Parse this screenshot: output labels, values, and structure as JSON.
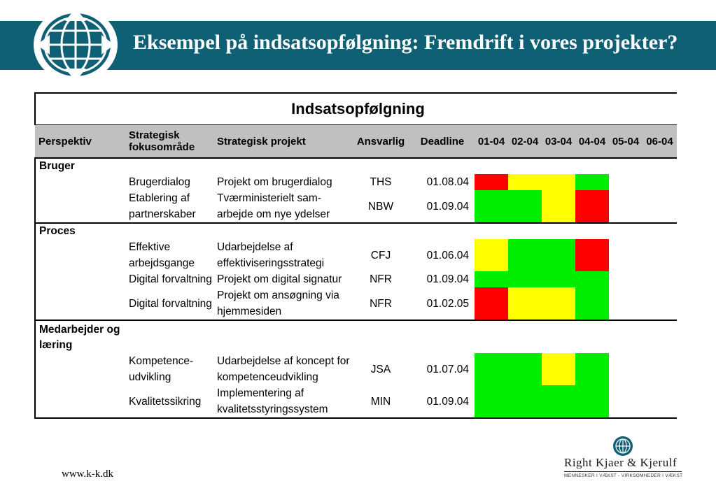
{
  "slide": {
    "title": "Eksempel på indsatsopfølgning: Fremdrift i vores projekter?",
    "url": "www.k-k.dk",
    "brand_name": "Right Kjaer & Kjerulf",
    "brand_sub": "MENNESKER I VÆKST - VIRKSOMHEDER I VÆKST",
    "header_color": "#0f5f75"
  },
  "table": {
    "title": "Indsatsopfølgning",
    "headers": {
      "perspektiv": "Perspektiv",
      "fokus": "Strategisk fokusområde",
      "projekt": "Strategisk projekt",
      "ansvarlig": "Ansvarlig",
      "deadline": "Deadline",
      "months": [
        "01-04",
        "02-04",
        "03-04",
        "04-04",
        "05-04",
        "06-04"
      ]
    },
    "status_colors": {
      "r": "#ff0000",
      "y": "#ffff00",
      "g": "#00ee00"
    },
    "groups": [
      {
        "perspektiv": "Bruger",
        "rows": [
          {
            "fokus": "Brugerdialog",
            "projekt": "Projekt om brugerdialog",
            "ansvarlig": "THS",
            "deadline": "01.08.04",
            "status": [
              "r",
              "y",
              "y",
              "g"
            ]
          },
          {
            "fokus": "Etablering af partnerskaber",
            "projekt": "Tværministerielt sam-arbejde om nye ydelser",
            "ansvarlig": "NBW",
            "deadline": "01.09.04",
            "status": [
              "g",
              "g",
              "y",
              "r"
            ]
          }
        ]
      },
      {
        "perspektiv": "Proces",
        "rows": [
          {
            "fokus": "Effektive arbejdsgange",
            "projekt": "Udarbejdelse af effektiviseringsstrategi",
            "ansvarlig": "CFJ",
            "deadline": "01.06.04",
            "status": [
              "y",
              "g",
              "g",
              "r"
            ]
          },
          {
            "fokus": "Digital forvaltning",
            "projekt": "Projekt om digital signatur",
            "ansvarlig": "NFR",
            "deadline": "01.09.04",
            "status": [
              "g",
              "g",
              "g",
              "g"
            ]
          },
          {
            "fokus": "Digital forvaltning",
            "projekt": "Projekt om ansøgning via hjemmesiden",
            "ansvarlig": "NFR",
            "deadline": "01.02.05",
            "status": [
              "r",
              "y",
              "y",
              "g"
            ]
          }
        ]
      },
      {
        "perspektiv": "Medarbejder og læring",
        "rows": [
          {
            "fokus": "Kompetence-udvikling",
            "projekt": "Udarbejdelse af koncept for kompetenceudvikling",
            "ansvarlig": "JSA",
            "deadline": "01.07.04",
            "status": [
              "g",
              "g",
              "y",
              "g"
            ]
          },
          {
            "fokus": "Kvalitetssikring",
            "projekt": "Implementering af kvalitetsstyringssystem",
            "ansvarlig": "MIN",
            "deadline": "01.09.04",
            "status": [
              "g",
              "g",
              "g",
              "g"
            ]
          }
        ]
      }
    ]
  }
}
